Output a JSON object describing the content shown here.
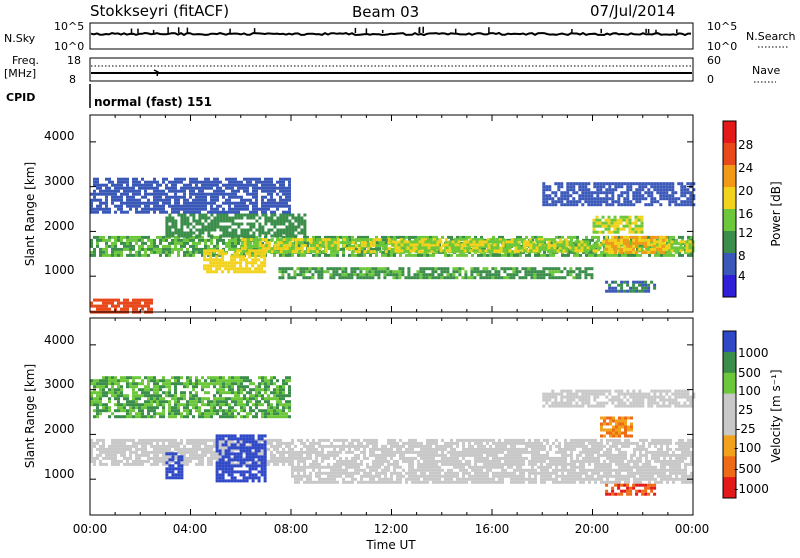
{
  "header": {
    "station": "Stokkseyri (fitACF)",
    "beam": "Beam 03",
    "date": "07/Jul/2014"
  },
  "strip": {
    "nsky_label": "N.Sky",
    "nsky_ticks": [
      "10^5",
      "10^0"
    ],
    "nsearch_label": "N.Search",
    "nsearch_ticks": [
      "10^5",
      "10^0"
    ],
    "freq_label": "Freq.",
    "freq_unit": "[MHz]",
    "freq_ticks": [
      "18",
      "8"
    ],
    "nave_label": "Nave",
    "nave_ticks": [
      "60",
      "0"
    ],
    "cpid_label": "CPID",
    "cpid_value": "normal (fast) 151"
  },
  "colors": {
    "power": [
      "#2f1fd8",
      "#3a58b8",
      "#3b8e4a",
      "#6cc83a",
      "#f2d21c",
      "#f29a18",
      "#e8481a",
      "#e41a1a"
    ],
    "velocity": [
      "#e41a1a",
      "#ee6a14",
      "#f2a11c",
      "#c8c8c8",
      "#c8c8c8",
      "#6cc83a",
      "#3b8e4a",
      "#2f48c8"
    ],
    "grey": "#c8c8c8"
  },
  "chart_data": [
    {
      "type": "heatmap",
      "name": "power",
      "ylabel": "Slant Range [km]",
      "yticks": [
        "4000",
        "3000",
        "2000",
        "1000"
      ],
      "ylim": [
        200,
        4600
      ],
      "x_ticks": [
        "00:00",
        "04:00",
        "08:00",
        "12:00",
        "16:00",
        "20:00",
        "00:00"
      ],
      "colorbar": {
        "label": "Power [dB]",
        "ticks": [
          "28",
          "24",
          "20",
          "16",
          "12",
          "8",
          "4"
        ],
        "range": [
          0,
          30
        ]
      },
      "bands": [
        {
          "t0": 0.0,
          "t1": 24.0,
          "r0": 1450,
          "r1": 1900,
          "v": 12
        },
        {
          "t0": 3.0,
          "t1": 8.5,
          "r0": 1900,
          "r1": 2400,
          "v": 10
        },
        {
          "t0": 6.0,
          "t1": 19.0,
          "r0": 1550,
          "r1": 1850,
          "v": 16
        },
        {
          "t0": 12.0,
          "t1": 24.0,
          "r0": 1550,
          "r1": 1800,
          "v": 16
        },
        {
          "t0": 4.5,
          "t1": 7.0,
          "r0": 1100,
          "r1": 1600,
          "v": 18
        },
        {
          "t0": 7.5,
          "t1": 20.0,
          "r0": 950,
          "r1": 1200,
          "v": 11
        },
        {
          "t0": 20.5,
          "t1": 23.0,
          "r0": 1550,
          "r1": 1900,
          "v": 20
        },
        {
          "t0": 20.0,
          "t1": 22.0,
          "r0": 1950,
          "r1": 2350,
          "v": 16
        },
        {
          "t0": 0.0,
          "t1": 2.5,
          "r0": 200,
          "r1": 500,
          "v": 26
        },
        {
          "t0": 0.0,
          "t1": 8.0,
          "r0": 2400,
          "r1": 3200,
          "v": 6
        },
        {
          "t0": 18.0,
          "t1": 24.0,
          "r0": 2600,
          "r1": 3100,
          "v": 6
        },
        {
          "t0": 20.5,
          "t1": 22.5,
          "r0": 650,
          "r1": 900,
          "v": 8
        }
      ]
    },
    {
      "type": "heatmap",
      "name": "velocity",
      "ylabel": "Slant Range [km]",
      "yticks": [
        "4000",
        "3000",
        "2000",
        "1000"
      ],
      "ylim": [
        200,
        4600
      ],
      "xlabel": "Time UT",
      "x_ticks": [
        "00:00",
        "04:00",
        "08:00",
        "12:00",
        "16:00",
        "20:00",
        "00:00"
      ],
      "colorbar": {
        "label": "Velocity [m s⁻¹]",
        "ticks": [
          "1000",
          "500",
          "100",
          "25",
          "-25",
          "-100",
          "-500",
          "-1000"
        ]
      },
      "bands": [
        {
          "t0": 0.0,
          "t1": 24.0,
          "r0": 1300,
          "r1": 1900,
          "v": 0
        },
        {
          "t0": 8.0,
          "t1": 24.0,
          "r0": 900,
          "r1": 1300,
          "v": 0
        },
        {
          "t0": 3.0,
          "t1": 3.6,
          "r0": 1000,
          "r1": 1600,
          "v": 1000
        },
        {
          "t0": 5.0,
          "t1": 7.0,
          "r0": 950,
          "r1": 2000,
          "v": 1000
        },
        {
          "t0": 20.3,
          "t1": 21.5,
          "r0": 1950,
          "r1": 2400,
          "v": -100
        },
        {
          "t0": 20.5,
          "t1": 22.5,
          "r0": 650,
          "r1": 900,
          "v": -500
        },
        {
          "t0": 0.0,
          "t1": 8.0,
          "r0": 2400,
          "r1": 3300,
          "v": 100
        },
        {
          "t0": 18.0,
          "t1": 24.0,
          "r0": 2600,
          "r1": 3000,
          "v": 0
        }
      ]
    }
  ]
}
